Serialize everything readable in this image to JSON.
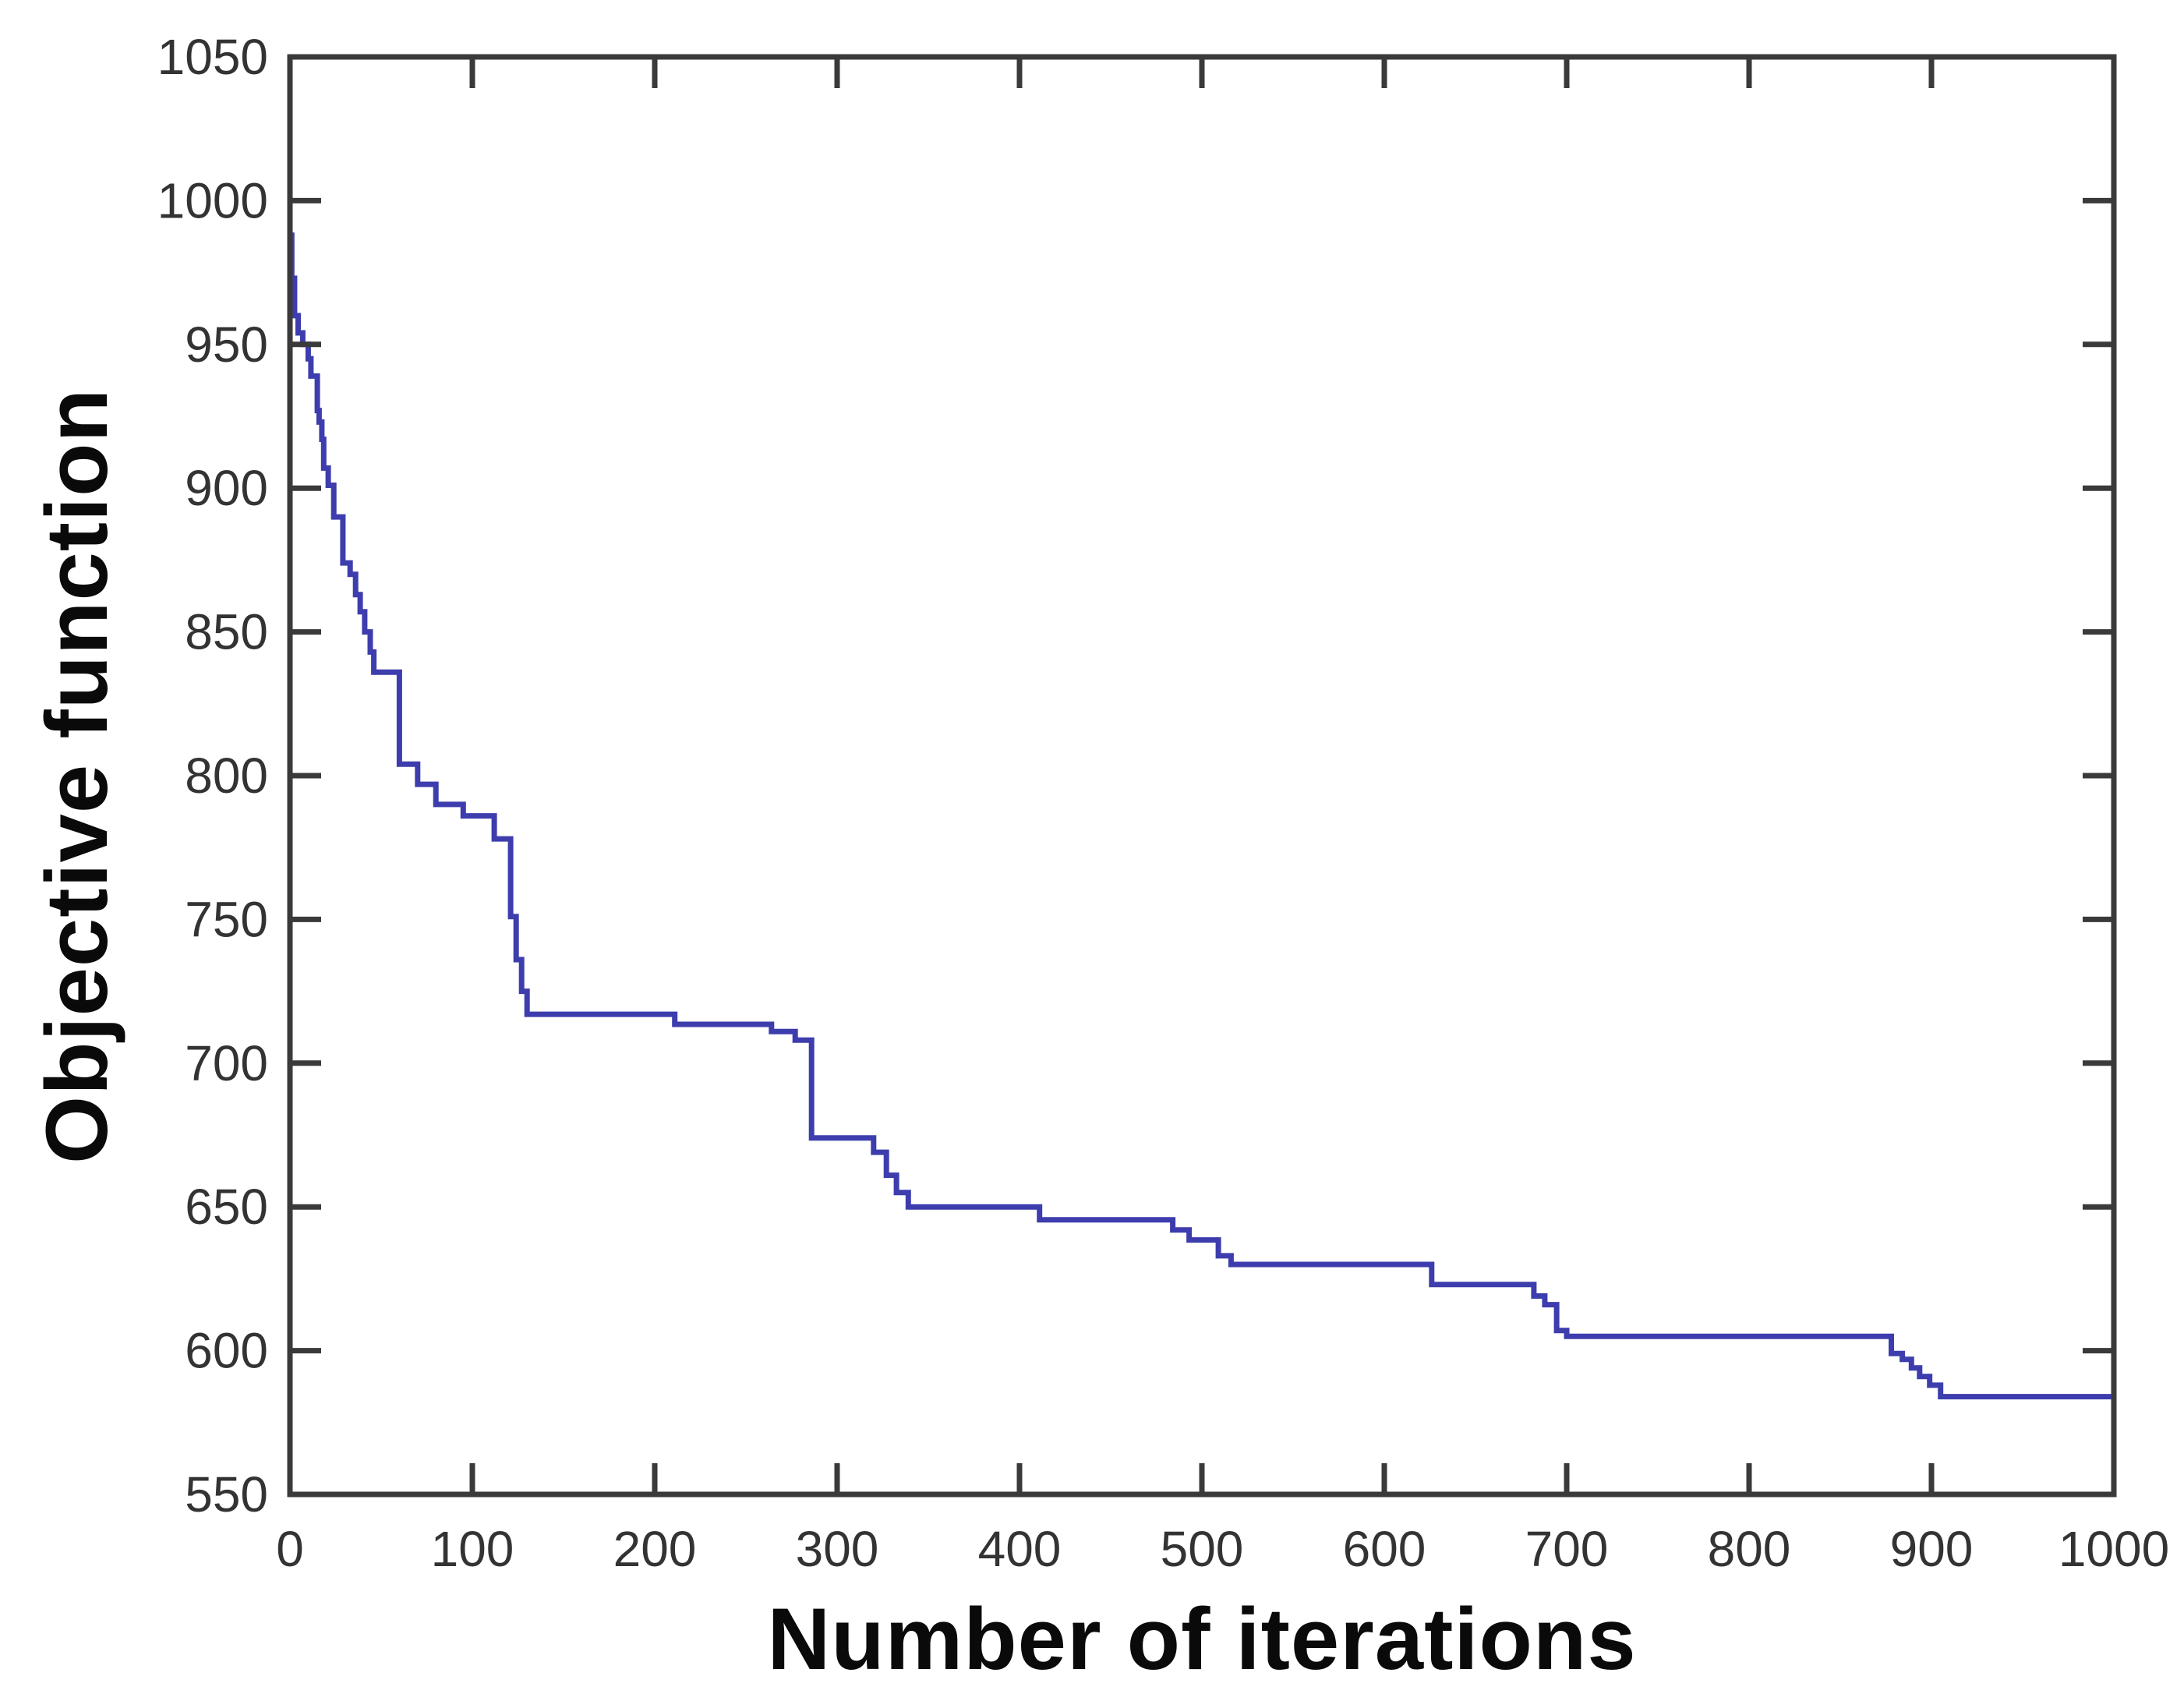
{
  "figure": {
    "background_color": "#ffffff",
    "axis_color": "#3a3a3a",
    "tick_label_color": "#333333",
    "curve_color": "#3d3dae"
  },
  "chart_data": {
    "type": "line",
    "line_style": "step-after",
    "title": "",
    "xlabel": "Number of iterations",
    "ylabel": "Objective function",
    "xlim": [
      0,
      1000
    ],
    "ylim": [
      550,
      1050
    ],
    "grid": false,
    "legend_position": "none",
    "x_tick_labels": [
      "0",
      "100",
      "200",
      "300",
      "400",
      "500",
      "600",
      "700",
      "800",
      "900",
      "1000"
    ],
    "y_tick_labels": [
      "550",
      "600",
      "650",
      "700",
      "750",
      "800",
      "850",
      "900",
      "950",
      "1000",
      "1050"
    ],
    "x_ticks": [
      0,
      100,
      200,
      300,
      400,
      500,
      600,
      700,
      800,
      900,
      1000
    ],
    "y_ticks": [
      550,
      600,
      650,
      700,
      750,
      800,
      850,
      900,
      950,
      1000,
      1050
    ],
    "series": [
      {
        "name": "objective-function-best-so-far",
        "color": "#3d3dae",
        "points": [
          [
            0,
            988
          ],
          [
            1,
            973
          ],
          [
            2.5,
            960
          ],
          [
            4.5,
            954
          ],
          [
            7,
            950
          ],
          [
            10,
            945
          ],
          [
            11.5,
            939
          ],
          [
            15,
            927
          ],
          [
            16,
            923
          ],
          [
            17.5,
            917
          ],
          [
            18.5,
            907
          ],
          [
            21,
            901
          ],
          [
            24,
            890
          ],
          [
            29,
            874
          ],
          [
            33,
            870
          ],
          [
            36,
            863
          ],
          [
            38.5,
            857
          ],
          [
            41,
            850
          ],
          [
            44,
            843
          ],
          [
            46,
            836
          ],
          [
            60,
            804
          ],
          [
            70,
            797
          ],
          [
            80,
            790
          ],
          [
            95,
            786
          ],
          [
            112,
            778
          ],
          [
            121,
            751
          ],
          [
            124,
            736
          ],
          [
            127,
            725
          ],
          [
            130,
            717
          ],
          [
            211,
            713.5
          ],
          [
            264,
            711
          ],
          [
            277,
            708
          ],
          [
            286,
            674
          ],
          [
            320,
            669
          ],
          [
            327,
            661
          ],
          [
            332.5,
            655
          ],
          [
            339,
            650
          ],
          [
            411,
            645.5
          ],
          [
            484,
            642
          ],
          [
            493,
            638.5
          ],
          [
            509,
            633
          ],
          [
            516,
            630
          ],
          [
            626,
            623
          ],
          [
            682,
            619
          ],
          [
            688,
            616
          ],
          [
            694.5,
            607
          ],
          [
            700,
            605
          ],
          [
            878,
            599
          ],
          [
            884,
            597
          ],
          [
            889,
            594
          ],
          [
            893.5,
            591
          ],
          [
            899,
            588
          ],
          [
            905,
            584
          ],
          [
            1000,
            584
          ]
        ]
      }
    ]
  }
}
